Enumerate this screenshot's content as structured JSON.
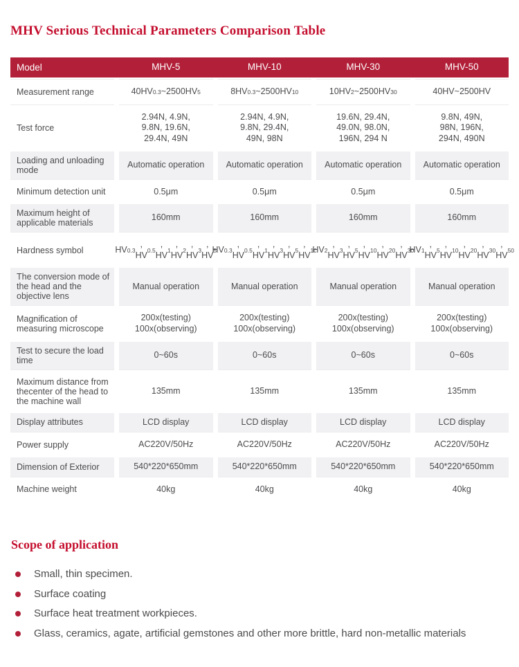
{
  "title": "MHV Serious Technical Parameters Comparison Table",
  "colors": {
    "accent_red": "#b21f38",
    "title_red": "#c40e2e",
    "row_shade": "#f1f0f2"
  },
  "table": {
    "header": [
      "Model",
      "MHV-5",
      "MHV-10",
      "MHV-30",
      "MHV-50"
    ],
    "subscript_note": "square brackets in values denote subscript text",
    "rows": [
      {
        "label": "Measurement range",
        "shaded": false,
        "values": [
          "40HV[0.3]~2500HV[5]",
          "8HV[0.3]~2500HV[10]",
          "10HV[2]~2500HV[30]",
          "40HV~2500HV"
        ]
      },
      {
        "label": "Test force",
        "shaded": false,
        "values": [
          "2.94N, 4.9N,\n9.8N, 19.6N,\n29.4N, 49N",
          "2.94N, 4.9N,\n9.8N, 29.4N,\n49N, 98N",
          "19.6N, 29.4N,\n49.0N, 98.0N,\n196N, 294 N",
          "9.8N, 49N,\n98N, 196N,\n294N, 490N"
        ]
      },
      {
        "label": "Loading and unloading mode",
        "shaded": true,
        "values": [
          "Automatic operation",
          "Automatic operation",
          "Automatic operation",
          "Automatic operation"
        ]
      },
      {
        "label": "Minimum detection unit",
        "shaded": false,
        "values": [
          "0.5μm",
          "0.5μm",
          "0.5μm",
          "0.5μm"
        ]
      },
      {
        "label": "Maximum height of applicable materials",
        "shaded": true,
        "values": [
          "160mm",
          "160mm",
          "160mm",
          "160mm"
        ]
      },
      {
        "label": "Hardness symbol",
        "shaded": false,
        "values": [
          "HV[0.3], HV[0.5],\nHV[1], HV[2],\nHV[3], HV[5]",
          "HV[0.3], HV[0.5],\nHV[1], HV[3],\nHV[5], HV[10]",
          "HV[2], HV[3],\nHV[5], HV[10],\nHV[20], HV[30]",
          "HV[1], HV[5],\nHV[10], HV[20],\nHV[30], HV[50]"
        ]
      },
      {
        "label": "The conversion mode of the head and the objective lens",
        "shaded": true,
        "values": [
          "Manual operation",
          "Manual operation",
          "Manual operation",
          "Manual operation"
        ]
      },
      {
        "label": "Magnification of measuring microscope",
        "shaded": false,
        "values": [
          "200x(testing)\n100x(observing)",
          "200x(testing)\n100x(observing)",
          "200x(testing)\n100x(observing)",
          "200x(testing)\n100x(observing)"
        ]
      },
      {
        "label": "Test to secure the load time",
        "shaded": true,
        "values": [
          "0~60s",
          "0~60s",
          "0~60s",
          "0~60s"
        ]
      },
      {
        "label": "Maximum distance from thecenter of the head to the machine wall",
        "shaded": false,
        "values": [
          "135mm",
          "135mm",
          "135mm",
          "135mm"
        ]
      },
      {
        "label": "Display attributes",
        "shaded": true,
        "values": [
          "LCD display",
          "LCD display",
          "LCD display",
          "LCD display"
        ]
      },
      {
        "label": "Power supply",
        "shaded": false,
        "values": [
          "AC220V/50Hz",
          "AC220V/50Hz",
          "AC220V/50Hz",
          "AC220V/50Hz"
        ]
      },
      {
        "label": "Dimension of Exterior",
        "shaded": true,
        "values": [
          "540*220*650mm",
          "540*220*650mm",
          "540*220*650mm",
          "540*220*650mm"
        ]
      },
      {
        "label": "Machine weight",
        "shaded": false,
        "values": [
          "40kg",
          "40kg",
          "40kg",
          "40kg"
        ]
      }
    ]
  },
  "scope": {
    "heading": "Scope of application",
    "items": [
      "Small, thin specimen.",
      "Surface coating",
      "Surface heat treatment workpieces.",
      "Glass, ceramics, agate, artificial gemstones and other more brittle, hard non-metallic materials"
    ]
  }
}
